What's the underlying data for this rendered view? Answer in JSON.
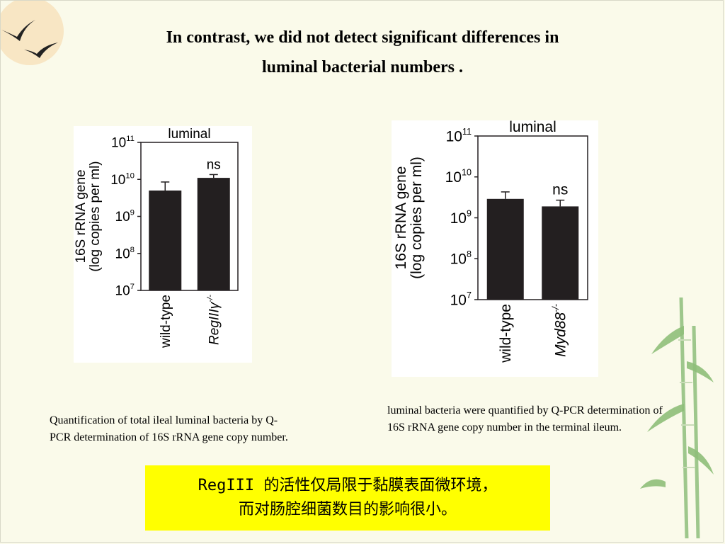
{
  "slide": {
    "title_line1": "In contrast, we did not detect significant differences in",
    "title_line2": "luminal bacterial numbers .",
    "caption_left": "Quantification of total ileal luminal bacteria by Q-PCR determination of 16S rRNA gene copy number.",
    "caption_right": "luminal bacteria were quantified by Q-PCR determination of 16S rRNA gene copy number in the terminal ileum.",
    "summary_line1": "RegIII 的活性仅局限于黏膜表面微环境，",
    "summary_line2": "而对肠腔细菌数目的影响很小。",
    "colors": {
      "background": "#fafaea",
      "summary_highlight": "#ffff00",
      "bar": "#231f20"
    },
    "decor_icons": [
      "sun-icon",
      "bird-icon",
      "bamboo-icon"
    ]
  },
  "chart_data": [
    {
      "type": "bar",
      "title": "luminal",
      "ylabel_line1": "16S rRNA gene",
      "ylabel_line2": "(log copies per ml)",
      "yscale": "log",
      "ylim": [
        10000000,
        100000000000
      ],
      "ytick_bases": [
        "10",
        "10",
        "10",
        "10",
        "10"
      ],
      "ytick_exponents": [
        "7",
        "8",
        "9",
        "10",
        "11"
      ],
      "categories": [
        "wild-type",
        "RegIIIγ"
      ],
      "category_superscripts": [
        "",
        "-/-"
      ],
      "category_italic": [
        false,
        true
      ],
      "values": [
        5000000000,
        11000000000
      ],
      "error_upper": [
        8500000000,
        13500000000
      ],
      "annotations": [
        "",
        "ns"
      ],
      "grid": false,
      "legend": "none"
    },
    {
      "type": "bar",
      "title": "luminal",
      "ylabel_line1": "16S rRNA gene",
      "ylabel_line2": "(log copies per ml)",
      "yscale": "log",
      "ylim": [
        10000000,
        100000000000
      ],
      "ytick_bases": [
        "10",
        "10",
        "10",
        "10",
        "10"
      ],
      "ytick_exponents": [
        "7",
        "8",
        "9",
        "10",
        "11"
      ],
      "categories": [
        "wild-type",
        "Myd88"
      ],
      "category_superscripts": [
        "",
        "-/-"
      ],
      "category_italic": [
        false,
        true
      ],
      "values": [
        2900000000,
        1900000000
      ],
      "error_upper": [
        4300000000,
        2700000000
      ],
      "annotations": [
        "",
        "ns"
      ],
      "grid": false,
      "legend": "none"
    }
  ]
}
